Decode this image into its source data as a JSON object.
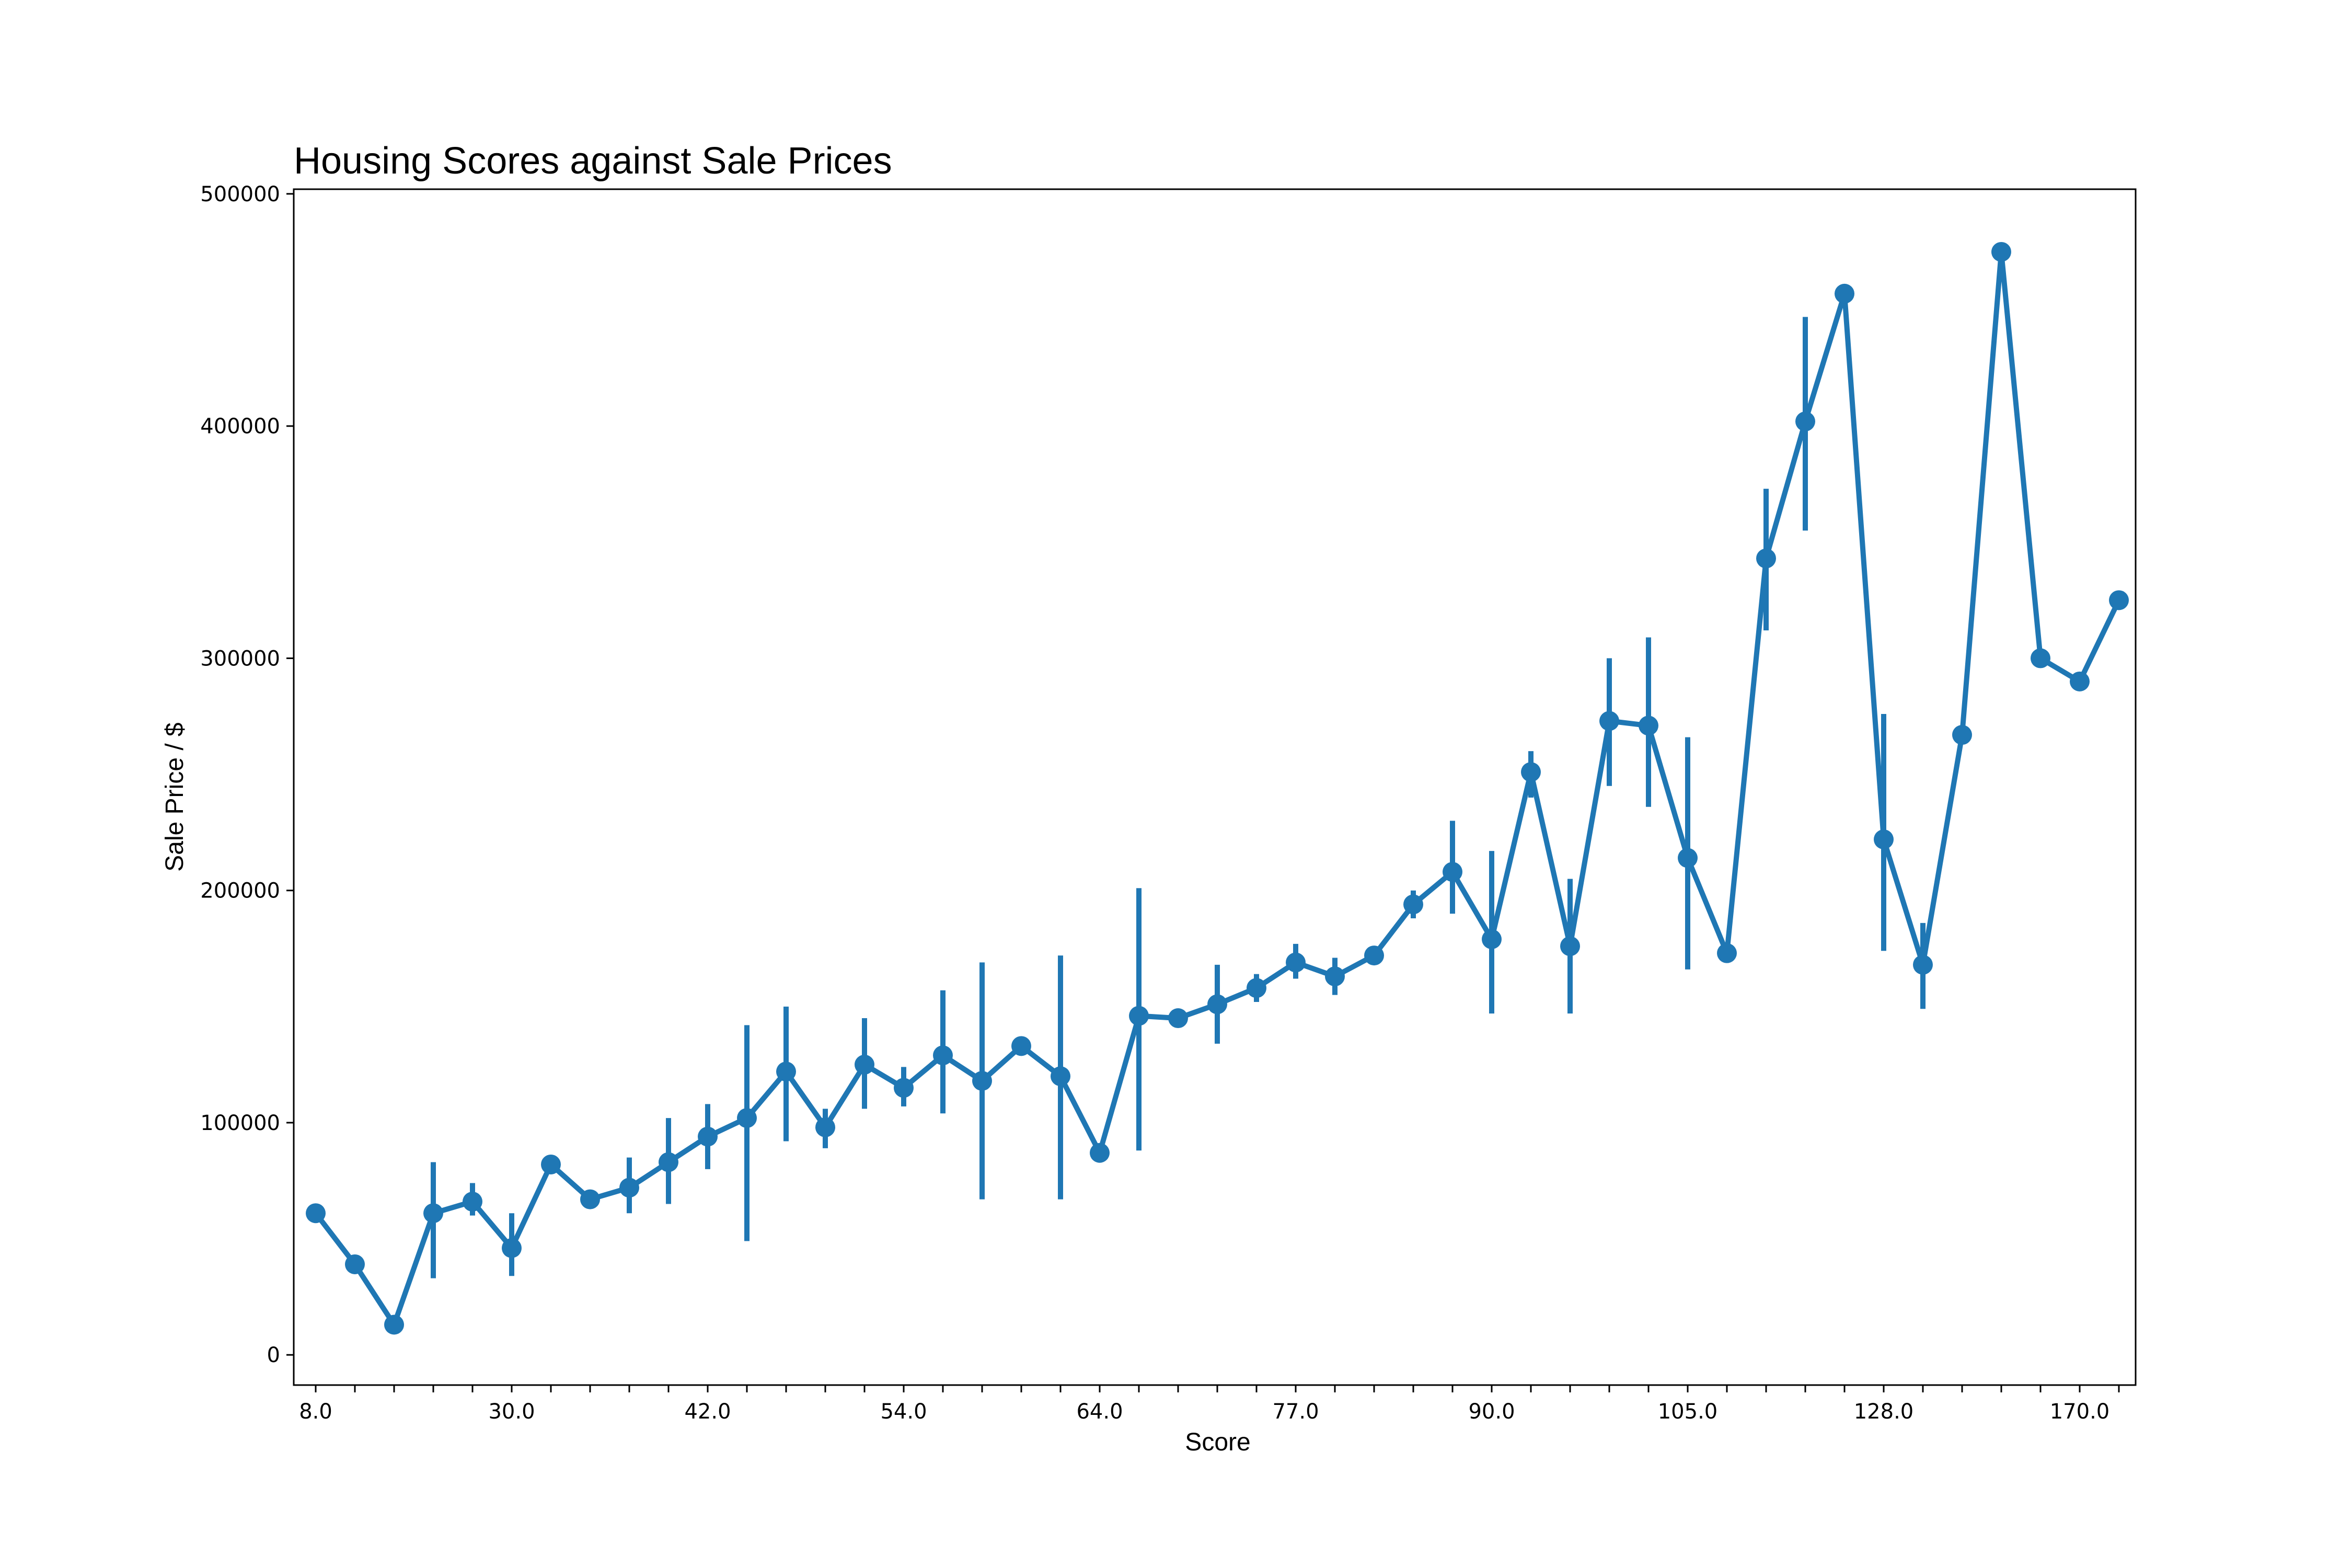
{
  "chart_data": {
    "type": "line",
    "title": "Housing Scores against Sale Prices",
    "xlabel": "Score",
    "ylabel": "Sale Price / $",
    "ylim": [
      -13000,
      502000
    ],
    "yticks": [
      0,
      100000,
      200000,
      300000,
      400000,
      500000
    ],
    "ytick_labels": [
      "0",
      "100000",
      "200000",
      "300000",
      "400000",
      "500000"
    ],
    "x_category_count": 47,
    "xtick_labels_shown": [
      {
        "index": 0,
        "label": "8.0"
      },
      {
        "index": 5,
        "label": "30.0"
      },
      {
        "index": 10,
        "label": "42.0"
      },
      {
        "index": 15,
        "label": "54.0"
      },
      {
        "index": 20,
        "label": "64.0"
      },
      {
        "index": 25,
        "label": "77.0"
      },
      {
        "index": 30,
        "label": "90.0"
      },
      {
        "index": 35,
        "label": "105.0"
      },
      {
        "index": 40,
        "label": "128.0"
      },
      {
        "index": 45,
        "label": "170.0"
      }
    ],
    "color": "#1f77b4",
    "grid": false,
    "legend": "none",
    "series": [
      {
        "values": [
          61000,
          39000,
          13000,
          61000,
          66000,
          46000,
          82000,
          67000,
          72000,
          83000,
          94000,
          102000,
          122000,
          98000,
          125000,
          115000,
          129000,
          118000,
          133000,
          120000,
          87000,
          146000,
          145000,
          151000,
          158000,
          169000,
          163000,
          172000,
          194000,
          208000,
          179000,
          251000,
          176000,
          273000,
          271000,
          214000,
          173000,
          343000,
          402000,
          457000,
          222000,
          168000,
          267000,
          475000,
          300000,
          290000,
          325000
        ],
        "error_low": [
          null,
          null,
          null,
          33000,
          60000,
          34000,
          null,
          null,
          61000,
          65000,
          80000,
          49000,
          92000,
          89000,
          106000,
          107000,
          104000,
          67000,
          null,
          67000,
          null,
          88000,
          142000,
          134000,
          152000,
          162000,
          155000,
          null,
          188000,
          190000,
          147000,
          240000,
          147000,
          245000,
          236000,
          166000,
          null,
          312000,
          355000,
          null,
          174000,
          149000,
          null,
          null,
          null,
          null,
          null
        ],
        "error_high": [
          null,
          null,
          null,
          83000,
          74000,
          61000,
          null,
          null,
          85000,
          102000,
          108000,
          142000,
          150000,
          106000,
          145000,
          124000,
          157000,
          169000,
          null,
          172000,
          null,
          201000,
          149000,
          168000,
          164000,
          177000,
          171000,
          null,
          200000,
          230000,
          217000,
          260000,
          205000,
          300000,
          309000,
          266000,
          null,
          373000,
          447000,
          null,
          276000,
          186000,
          null,
          null,
          null,
          null,
          null
        ]
      }
    ]
  }
}
